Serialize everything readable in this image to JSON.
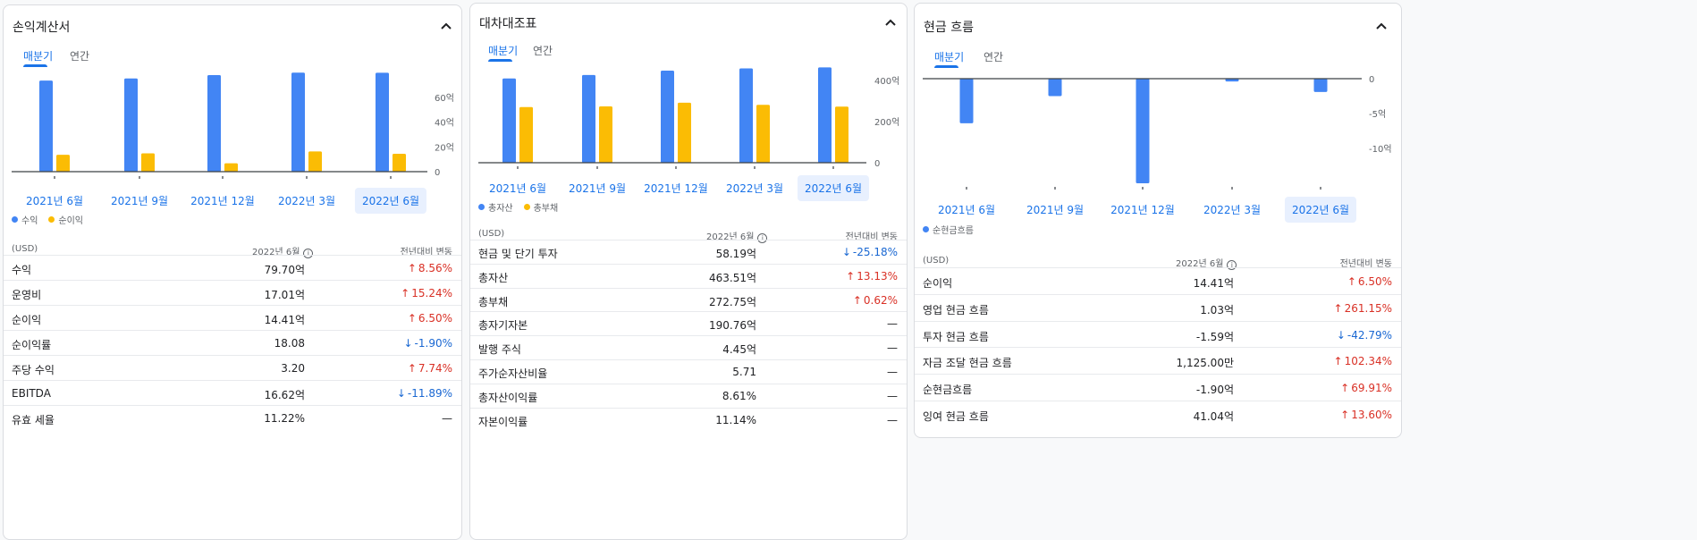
{
  "colors": {
    "blue": "#4285f4",
    "yellow": "#fbbc04",
    "link": "#1a73e8",
    "up": "#d93025",
    "down": "#1967d2"
  },
  "income": {
    "title": "손익계산서",
    "tabs": [
      "매분기",
      "연간"
    ],
    "quarters": [
      "2021년 6월",
      "2021년 9월",
      "2021년 12월",
      "2022년 3월",
      "2022년 6월"
    ],
    "yticks": [
      "60억",
      "40억",
      "20억",
      "0"
    ],
    "legend": [
      "수익",
      "순이익"
    ],
    "table_header": {
      "unit": "(USD)",
      "period": "2022년 6월",
      "change": "전년대비 변동"
    },
    "rows": [
      {
        "label": "수익",
        "value": "79.70억",
        "change": "8.56%",
        "dir": "up"
      },
      {
        "label": "운영비",
        "value": "17.01억",
        "change": "15.24%",
        "dir": "up"
      },
      {
        "label": "순이익",
        "value": "14.41억",
        "change": "6.50%",
        "dir": "up"
      },
      {
        "label": "순이익률",
        "value": "18.08",
        "change": "-1.90%",
        "dir": "down"
      },
      {
        "label": "주당 수익",
        "value": "3.20",
        "change": "7.74%",
        "dir": "up"
      },
      {
        "label": "EBITDA",
        "value": "16.62억",
        "change": "-11.89%",
        "dir": "down"
      },
      {
        "label": "유효 세율",
        "value": "11.22%",
        "change": "—",
        "dir": "flat"
      }
    ]
  },
  "balance": {
    "title": "대차대조표",
    "tabs": [
      "매분기",
      "연간"
    ],
    "quarters": [
      "2021년 6월",
      "2021년 9월",
      "2021년 12월",
      "2022년 3월",
      "2022년 6월"
    ],
    "yticks": [
      "400억",
      "200억",
      "0"
    ],
    "legend": [
      "총자산",
      "총부채"
    ],
    "table_header": {
      "unit": "(USD)",
      "period": "2022년 6월",
      "change": "전년대비 변동"
    },
    "rows": [
      {
        "label": "현금 및 단기 투자",
        "value": "58.19억",
        "change": "-25.18%",
        "dir": "down"
      },
      {
        "label": "총자산",
        "value": "463.51억",
        "change": "13.13%",
        "dir": "up"
      },
      {
        "label": "총부채",
        "value": "272.75억",
        "change": "0.62%",
        "dir": "up"
      },
      {
        "label": "총자기자본",
        "value": "190.76억",
        "change": "—",
        "dir": "flat"
      },
      {
        "label": "발행 주식",
        "value": "4.45억",
        "change": "—",
        "dir": "flat"
      },
      {
        "label": "주가순자산비율",
        "value": "5.71",
        "change": "—",
        "dir": "flat"
      },
      {
        "label": "총자산이익률",
        "value": "8.61%",
        "change": "—",
        "dir": "flat"
      },
      {
        "label": "자본이익률",
        "value": "11.14%",
        "change": "—",
        "dir": "flat"
      }
    ]
  },
  "cashflow": {
    "title": "현금 흐름",
    "tabs": [
      "매분기",
      "연간"
    ],
    "quarters": [
      "2021년 6월",
      "2021년 9월",
      "2021년 12월",
      "2022년 3월",
      "2022년 6월"
    ],
    "yticks": [
      "0",
      "-5억",
      "-10억"
    ],
    "legend": [
      "순현금흐름"
    ],
    "table_header": {
      "unit": "(USD)",
      "period": "2022년 6월",
      "change": "전년대비 변동"
    },
    "rows": [
      {
        "label": "순이익",
        "value": "14.41억",
        "change": "6.50%",
        "dir": "up"
      },
      {
        "label": "영업 현금 흐름",
        "value": "1.03억",
        "change": "261.15%",
        "dir": "up"
      },
      {
        "label": "투자 현금 흐름",
        "value": "-1.59억",
        "change": "-42.79%",
        "dir": "down"
      },
      {
        "label": "자금 조달 현금 흐름",
        "value": "1,125.00만",
        "change": "102.34%",
        "dir": "up"
      },
      {
        "label": "순현금흐름",
        "value": "-1.90억",
        "change": "69.91%",
        "dir": "up"
      },
      {
        "label": "잉여 현금 흐름",
        "value": "41.04억",
        "change": "13.60%",
        "dir": "up"
      }
    ]
  },
  "chart_data": [
    {
      "type": "bar",
      "categories": [
        "2021년 6월",
        "2021년 9월",
        "2021년 12월",
        "2022년 3월",
        "2022년 6월"
      ],
      "series": [
        {
          "name": "수익",
          "values": [
            73.4,
            75.1,
            77.8,
            79.8,
            79.7
          ]
        },
        {
          "name": "순이익",
          "values": [
            13.6,
            14.8,
            6.8,
            16.3,
            14.4
          ]
        }
      ],
      "ylim": [
        0,
        80
      ],
      "yticks": [
        0,
        20,
        40,
        60
      ]
    },
    {
      "type": "bar",
      "categories": [
        "2021년 6월",
        "2021년 9월",
        "2021년 12월",
        "2022년 3월",
        "2022년 6월"
      ],
      "series": [
        {
          "name": "총자산",
          "values": [
            410,
            427,
            448,
            459,
            464
          ]
        },
        {
          "name": "총부채",
          "values": [
            271,
            274,
            292,
            282,
            273
          ]
        }
      ],
      "ylim": [
        0,
        470
      ],
      "yticks": [
        0,
        200,
        400
      ]
    },
    {
      "type": "bar",
      "categories": [
        "2021년 6월",
        "2021년 9월",
        "2021년 12월",
        "2022년 3월",
        "2022년 6월"
      ],
      "series": [
        {
          "name": "순현금흐름",
          "values": [
            -6.4,
            -2.5,
            -15.0,
            -0.4,
            -1.9
          ]
        }
      ],
      "ylim": [
        -15,
        0
      ],
      "yticks": [
        0,
        -5,
        -10
      ]
    }
  ]
}
